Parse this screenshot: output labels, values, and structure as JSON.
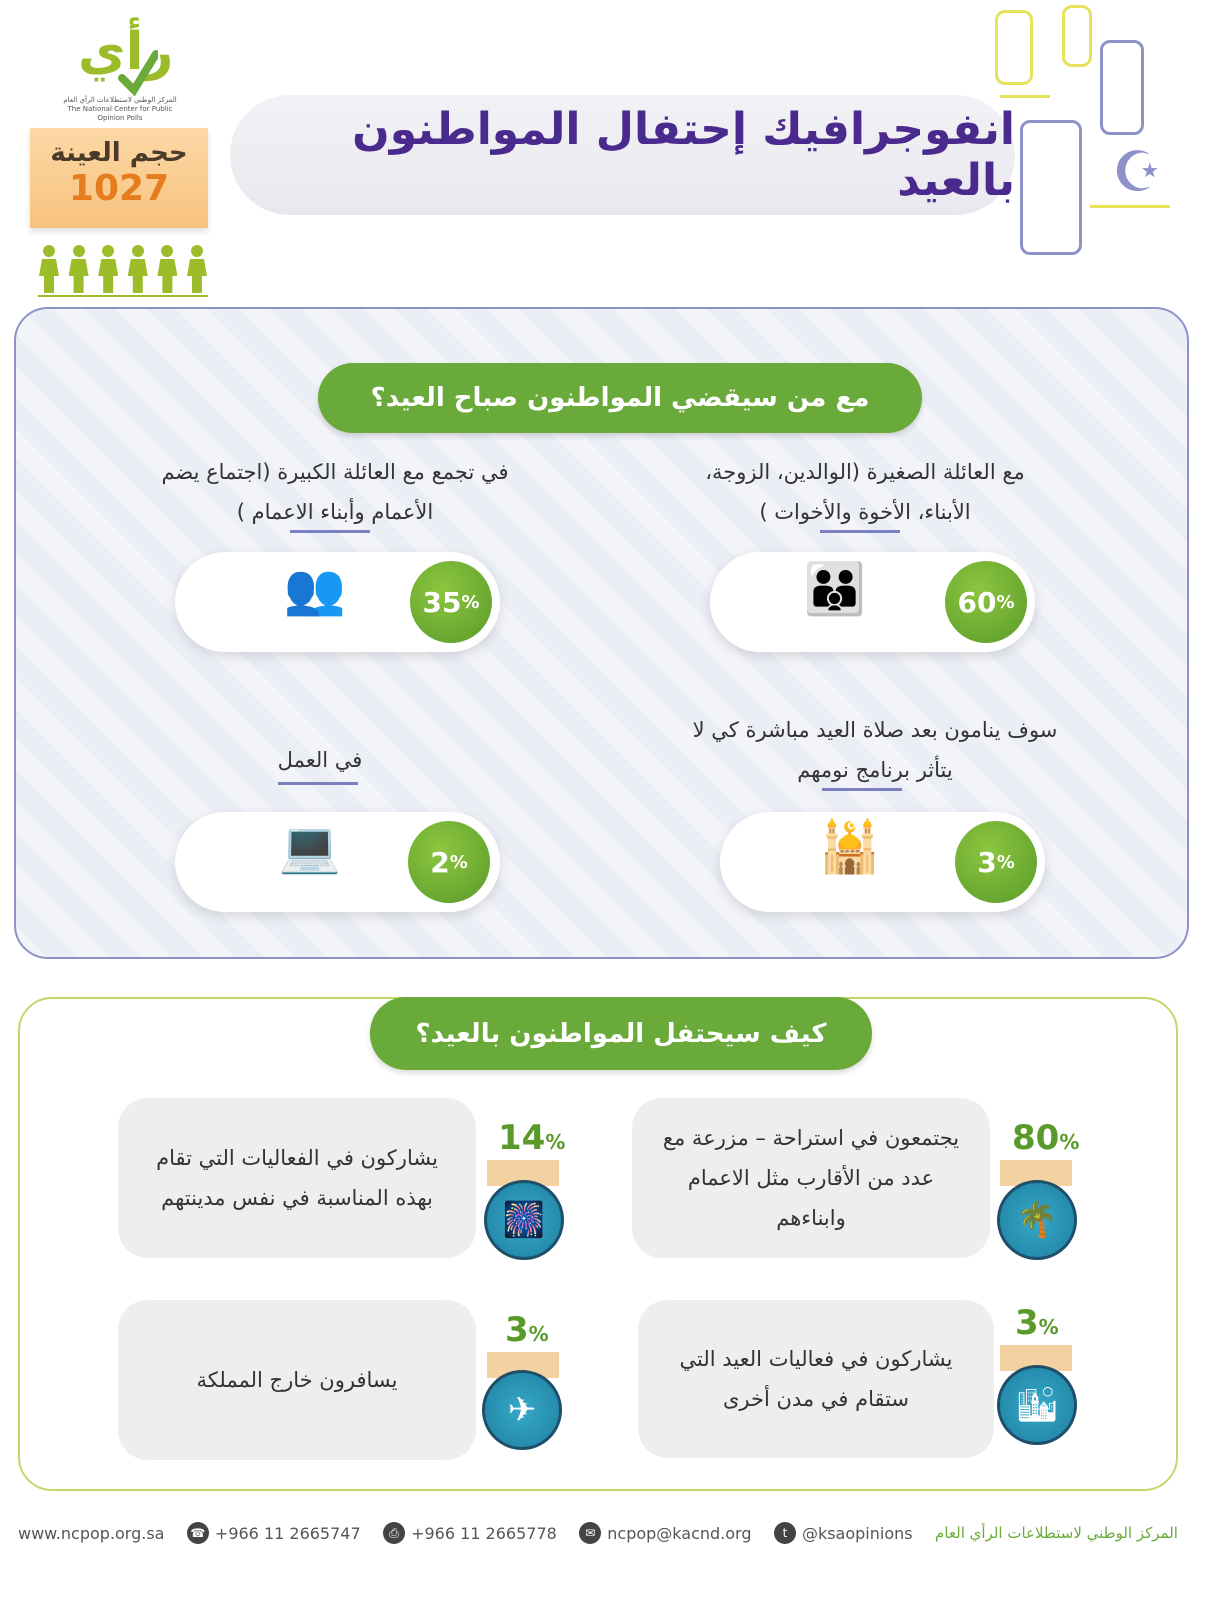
{
  "logo": {
    "mark": "رأي",
    "subtitle_ar": "المركز الوطني لاستطلاعات الرأي العام",
    "subtitle_en": "The National Center for Public Opinion Polls"
  },
  "sample": {
    "label": "حجم العينة",
    "value": "1027"
  },
  "title": "انفوجرافيك إحتفال المواطنون بالعيد",
  "section1": {
    "heading": "مع من سيقضي المواطنون صباح العيد؟",
    "items": [
      {
        "label": "مع العائلة الصغيرة (الوالدين، الزوجة، الأبناء، الأخوة والأخوات )",
        "value": "60",
        "icon": "family-icon"
      },
      {
        "label": "في تجمع مع العائلة الكبيرة (اجتماع يضم الأعمام وأبناء الاعمام )",
        "value": "35",
        "icon": "men-group-icon"
      },
      {
        "label": "سوف ينامون بعد صلاة العيد مباشرة كي لا يتأثر برنامج نومهم",
        "value": "3",
        "icon": "mosque-icon"
      },
      {
        "label": "في العمل",
        "value": "2",
        "icon": "computer-icon"
      }
    ]
  },
  "section2": {
    "heading": "كيف سيحتفل المواطنون بالعيد؟",
    "items": [
      {
        "label": "يجتمعون في استراحة – مزرعة مع عدد من الأقارب مثل الاعمام وابناءهم",
        "value": "80",
        "icon": "palm-trees-icon"
      },
      {
        "label": "يشاركون في الفعاليات التي تقام بهذه المناسبة في نفس مدينتهم",
        "value": "14",
        "icon": "city-fireworks-icon"
      },
      {
        "label": "يشاركون في فعاليات العيد التي ستقام في مدن أخرى",
        "value": "3",
        "icon": "city-bunting-icon"
      },
      {
        "label": "يسافرون خارج المملكة",
        "value": "3",
        "icon": "airplane-icon"
      }
    ]
  },
  "percent_sign": "%",
  "footer": {
    "website": "www.ncpop.org.sa",
    "phone": "+966 11 2665747",
    "fax": "+966 11 2665778",
    "email": "ncpop@kacnd.org",
    "twitter": "@ksaopinions",
    "org": "المركز الوطني لاستطلاعات الرأي العام"
  },
  "colors": {
    "green": "#6aaa3a",
    "purple": "#4b2a8e",
    "orange": "#e57d1f",
    "teal": "#1e7fa0"
  }
}
